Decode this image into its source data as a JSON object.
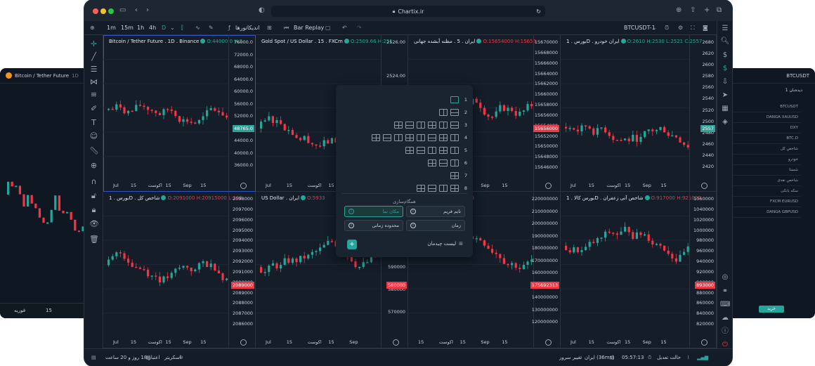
{
  "background_left": {
    "title": "Bitcoin / Tether Future",
    "interval": "1D",
    "bottom_labels": [
      "فوریه",
      "15"
    ]
  },
  "background_right": {
    "title": "BTCUSDT",
    "tab": "دیده‌بان 1",
    "rows": [
      "BTCUSDT",
      "DANGA XAUUSD",
      "DXY",
      "BTC.D",
      "شاخص کل",
      "خودرو",
      "شستا",
      "شاخص نقدی",
      "سکه بانکی",
      "FXCM EURUSD",
      "DANGA GBPUSD"
    ],
    "buy_button": "خرید"
  },
  "window": {
    "url": "Chartix.ir",
    "symbol": "BTCUSDT-1",
    "toolbar": {
      "intervals": [
        "1m",
        "15m",
        "1h",
        "4h",
        "D"
      ],
      "indicators": "اندیکاتورها",
      "bar_replay": "Bar Replay"
    }
  },
  "charts": [
    {
      "title": "Bitcoin / Tether Future",
      "interval": "1D",
      "exchange": "Binance",
      "ohlc": "O:44000.0  H:5",
      "y_ticks": [
        "76000.0",
        "72000.0",
        "68000.0",
        "64000.0",
        "60000.0",
        "56000.0",
        "52000.0",
        "48000.0",
        "44000.0",
        "40000.0",
        "36000.0"
      ],
      "x_ticks": [
        "Jul",
        "15",
        "اکوست",
        "15",
        "Sep",
        "15"
      ],
      "price_tag": "48765.0",
      "price_color": "#26a69a"
    },
    {
      "title": "Gold Spot / US Dollar",
      "interval": "15",
      "exchange": "FXCm",
      "ohlc": "O:2509.66  H:251",
      "y_ticks": [
        "2526.00",
        "2524.00",
        "2522.00",
        "2520.00"
      ],
      "x_ticks": [
        "Jul",
        "15",
        "اکوست",
        "15",
        "Sep"
      ],
      "price_tag": "",
      "price_color": "#26a69a"
    },
    {
      "title": "ایران . 5 . مظنه آبشده جهانی",
      "interval": "",
      "exchange": "",
      "ohlc": "O:15654000  H:15656",
      "y_ticks": [
        "15670000",
        "15668000",
        "15666000",
        "15664000",
        "15662000",
        "15660000",
        "15658000",
        "15656000",
        "15654000",
        "15652000",
        "15650000",
        "15648000",
        "15646000"
      ],
      "x_ticks": [
        "15",
        "اکوست",
        "15",
        "Sep",
        "15"
      ],
      "price_tag": "15656000",
      "price_color": "#f23645"
    },
    {
      "title": "بورس . 1D . ایران خودرو",
      "interval": "",
      "exchange": "",
      "ohlc": "O:2610  H:2530  L:2521  C:2557",
      "y_ticks": [
        "2680",
        "2620",
        "2600",
        "2580",
        "2560",
        "2540",
        "2520",
        "2500",
        "2480",
        "2460",
        "2440",
        "2420"
      ],
      "x_ticks": [
        "Jul",
        "15",
        "اکوست",
        "15",
        "Sep",
        "15"
      ],
      "price_tag": "2557",
      "price_color": "#26a69a"
    },
    {
      "title": "بورس . 1D . شاخص کل",
      "interval": "",
      "exchange": "",
      "ohlc": "O:2091000  H:20915000  L:208",
      "y_ticks": [
        "2098000",
        "2097000",
        "2096000",
        "2095000",
        "2094000",
        "2093000",
        "2092000",
        "2091000",
        "2090000",
        "2089000",
        "2088000",
        "2087000",
        "2086000"
      ],
      "x_ticks": [
        "Jul",
        "15",
        "اکوست",
        "15",
        "Sep",
        "15"
      ],
      "price_tag": "2089000",
      "price_color": "#f23645"
    },
    {
      "title": "US Dollar . ایران",
      "interval": "",
      "exchange": "",
      "ohlc": "O:5933",
      "y_ticks": [
        "620000",
        "610000",
        "600000",
        "590000",
        "580000",
        "570000"
      ],
      "x_ticks": [
        "Jul",
        "15",
        "اکوست",
        "15",
        "Sep"
      ],
      "price_tag": "580000",
      "price_color": "#f23645"
    },
    {
      "title": "Nobitex",
      "interval": "",
      "exchange": "",
      "ohlc": "O:210000000",
      "y_ticks": [
        "220000000",
        "210000000",
        "200000000",
        "190000000",
        "180000000",
        "170000000",
        "160000000",
        "150000000",
        "140000000",
        "130000000",
        "120000000"
      ],
      "x_ticks": [
        "15",
        "اکوست",
        "15",
        "Sep",
        "15"
      ],
      "price_tag": "175692313",
      "price_color": "#f23645"
    },
    {
      "title": "بورس کالا . 1D . شاخص آتی زعفران",
      "interval": "",
      "exchange": "",
      "ohlc": "O:917000  H:921000",
      "y_ticks": [
        "1060000",
        "1040000",
        "1020000",
        "1000000",
        "980000",
        "960000",
        "940000",
        "920000",
        "900000",
        "880000",
        "860000",
        "840000",
        "820000"
      ],
      "x_ticks": [
        "Jul",
        "15",
        "اکوست",
        "15",
        "Sep",
        "15"
      ],
      "price_tag": "893000",
      "price_color": "#f23645"
    }
  ],
  "layout_popup": {
    "rows": [
      "1",
      "2",
      "3",
      "4",
      "5",
      "6",
      "7",
      "8"
    ],
    "sync_title": "همگام‌سازی",
    "sync_buttons": [
      "تایم فریم",
      "مکان نما",
      "زمان",
      "محدوده زمانی"
    ],
    "layout_list": "لیست چیدمان",
    "add": "+"
  },
  "status": {
    "left1": "اعتبار 18 روز و 20 ساعت",
    "left2": "اسکریتر",
    "center": "تغییر سرور",
    "server": "ایران (36ms)",
    "time": "05:57:13",
    "mode": "حالت تعدیل"
  },
  "colors": {
    "up": "#26a69a",
    "down": "#f23645",
    "accent": "#2f53c8"
  }
}
